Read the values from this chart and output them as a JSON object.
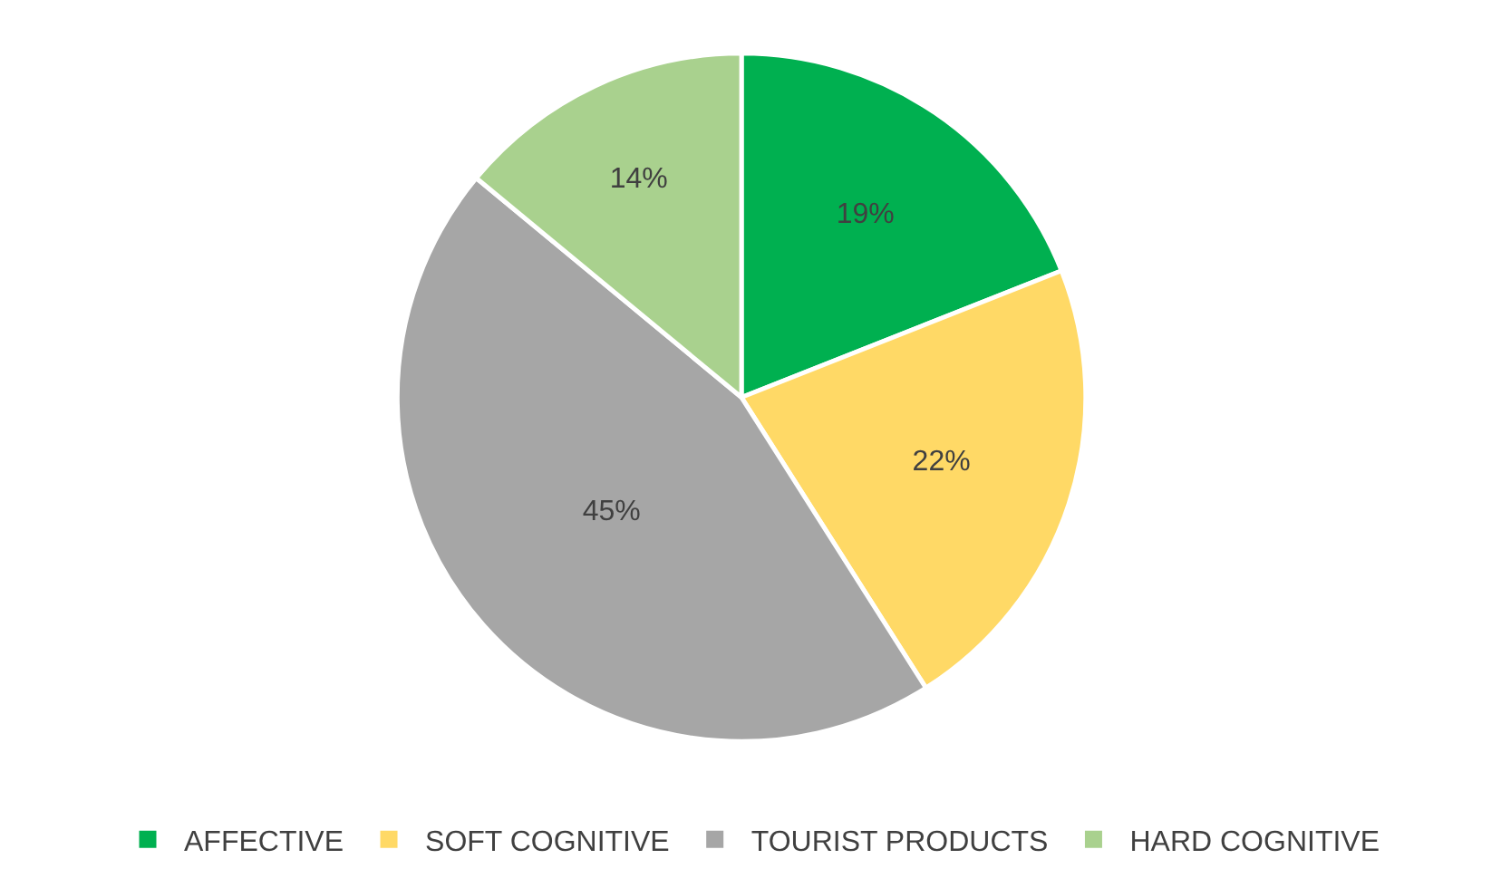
{
  "chart_data": {
    "type": "pie",
    "categories": [
      "AFFECTIVE",
      "SOFT COGNITIVE",
      "TOURIST PRODUCTS",
      "HARD COGNITIVE"
    ],
    "values": [
      19,
      22,
      45,
      14
    ],
    "value_labels": [
      "19%",
      "22%",
      "45%",
      "14%"
    ],
    "colors": [
      "#00b050",
      "#ffd966",
      "#a6a6a6",
      "#a9d18e"
    ],
    "legend": "bottom"
  }
}
